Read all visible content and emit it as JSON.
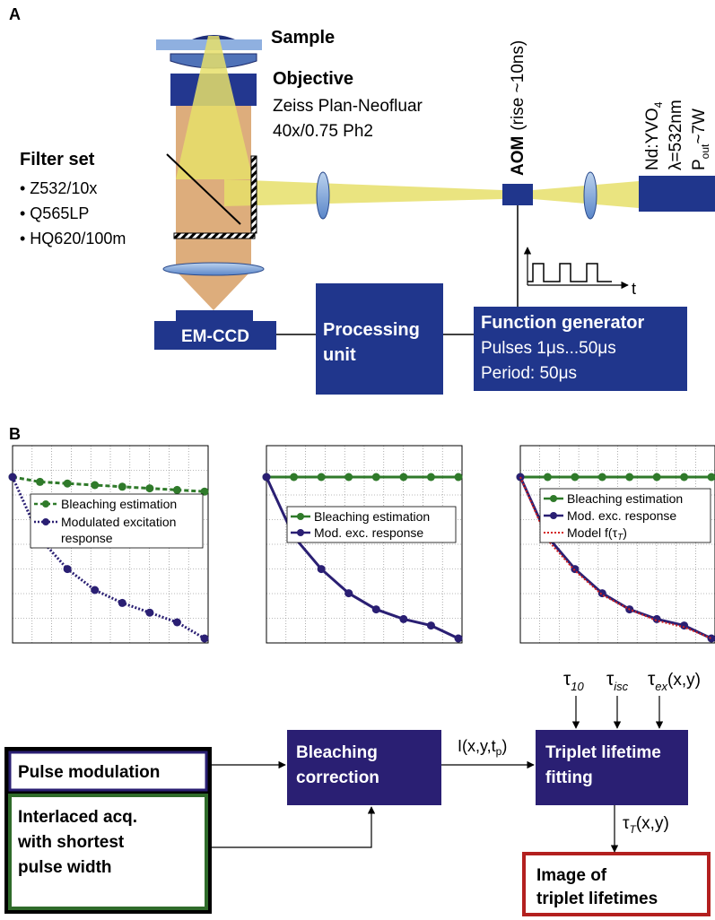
{
  "panel_a": {
    "label": "A",
    "sample": "Sample",
    "objective_title": "Objective",
    "objective_line1": "Zeiss Plan-Neofluar",
    "objective_line2": "40x/0.75 Ph2",
    "filter_title": "Filter set",
    "filters": [
      "• Z532/10x",
      "• Q565LP",
      "• HQ620/100m"
    ],
    "aom_label": "AOM",
    "aom_rise": "(rise ~10ns)",
    "laser_line1": "Nd:YVO",
    "laser_line1_sub": "4",
    "laser_line2": "λ=532nm",
    "laser_line3": "P",
    "laser_line3_sub": "out",
    "laser_line3_rest": "~7W",
    "pulse_axis": "t",
    "emccd": "EM-CCD",
    "processing_line1": "Processing",
    "processing_line2": "unit",
    "fg_title": "Function generator",
    "fg_line1": "Pulses 1μs...50μs",
    "fg_line2": "Period: 50μs"
  },
  "panel_b": {
    "label": "B",
    "legend1": [
      "Bleaching estimation",
      "Modulated excitation",
      "response"
    ],
    "legend2": [
      "Bleaching estimation",
      "Mod. exc. response"
    ],
    "legend3_a": "Bleaching estimation",
    "legend3_b": "Mod. exc. response",
    "legend3_c": "Model f(τ",
    "legend3_c_sub": "T",
    "legend3_c_end": ")",
    "pulse_modulation": "Pulse modulation",
    "interlaced": [
      "Interlaced acq.",
      "with shortest",
      "pulse width"
    ],
    "bleaching_correction": [
      "Bleaching",
      "correction"
    ],
    "signal_main": "I(x,y,t",
    "signal_sub": "p",
    "signal_end": ")",
    "triplet_fitting": [
      "Triplet lifetime",
      "fitting"
    ],
    "tau": "τ",
    "tau10_sub": "10",
    "tauisc_sub": "isc",
    "tauex_sub": "ex",
    "tauex_end": "(x,y)",
    "taut_sub": "T",
    "taut_end": "(x,y)",
    "output": [
      "Image of",
      "triplet lifetimes"
    ]
  },
  "colors": {
    "navy": "#2a1f73",
    "green": "#2f6b2a",
    "red": "#b3201f",
    "beam_yellow": "#e8e27a",
    "beam_orange": "#d9a46e",
    "box_blue": "#20368c"
  },
  "chart_data": [
    {
      "type": "line",
      "x": [
        0,
        1,
        2,
        3,
        4,
        5,
        6,
        7
      ],
      "series": [
        {
          "name": "Bleaching estimation",
          "values": [
            1.0,
            0.97,
            0.96,
            0.95,
            0.94,
            0.93,
            0.92,
            0.91
          ]
        },
        {
          "name": "Modulated excitation response",
          "values": [
            1.0,
            0.62,
            0.43,
            0.3,
            0.22,
            0.16,
            0.1,
            0.0
          ]
        }
      ],
      "ylim": [
        0,
        1
      ]
    },
    {
      "type": "line",
      "x": [
        0,
        1,
        2,
        3,
        4,
        5,
        6,
        7
      ],
      "series": [
        {
          "name": "Bleaching estimation",
          "values": [
            1.0,
            1.0,
            1.0,
            1.0,
            1.0,
            1.0,
            1.0,
            1.0
          ]
        },
        {
          "name": "Mod. exc. response",
          "values": [
            1.0,
            0.63,
            0.43,
            0.28,
            0.18,
            0.12,
            0.08,
            0.0
          ]
        }
      ],
      "ylim": [
        0,
        1
      ]
    },
    {
      "type": "line",
      "x": [
        0,
        1,
        2,
        3,
        4,
        5,
        6,
        7
      ],
      "series": [
        {
          "name": "Bleaching estimation",
          "values": [
            1.0,
            1.0,
            1.0,
            1.0,
            1.0,
            1.0,
            1.0,
            1.0
          ]
        },
        {
          "name": "Mod. exc. response",
          "values": [
            1.0,
            0.63,
            0.43,
            0.28,
            0.18,
            0.12,
            0.08,
            0.0
          ]
        },
        {
          "name": "Model f(τT)",
          "values": [
            1.0,
            0.61,
            0.42,
            0.27,
            0.18,
            0.11,
            0.07,
            0.0
          ]
        }
      ],
      "ylim": [
        0,
        1
      ]
    }
  ]
}
